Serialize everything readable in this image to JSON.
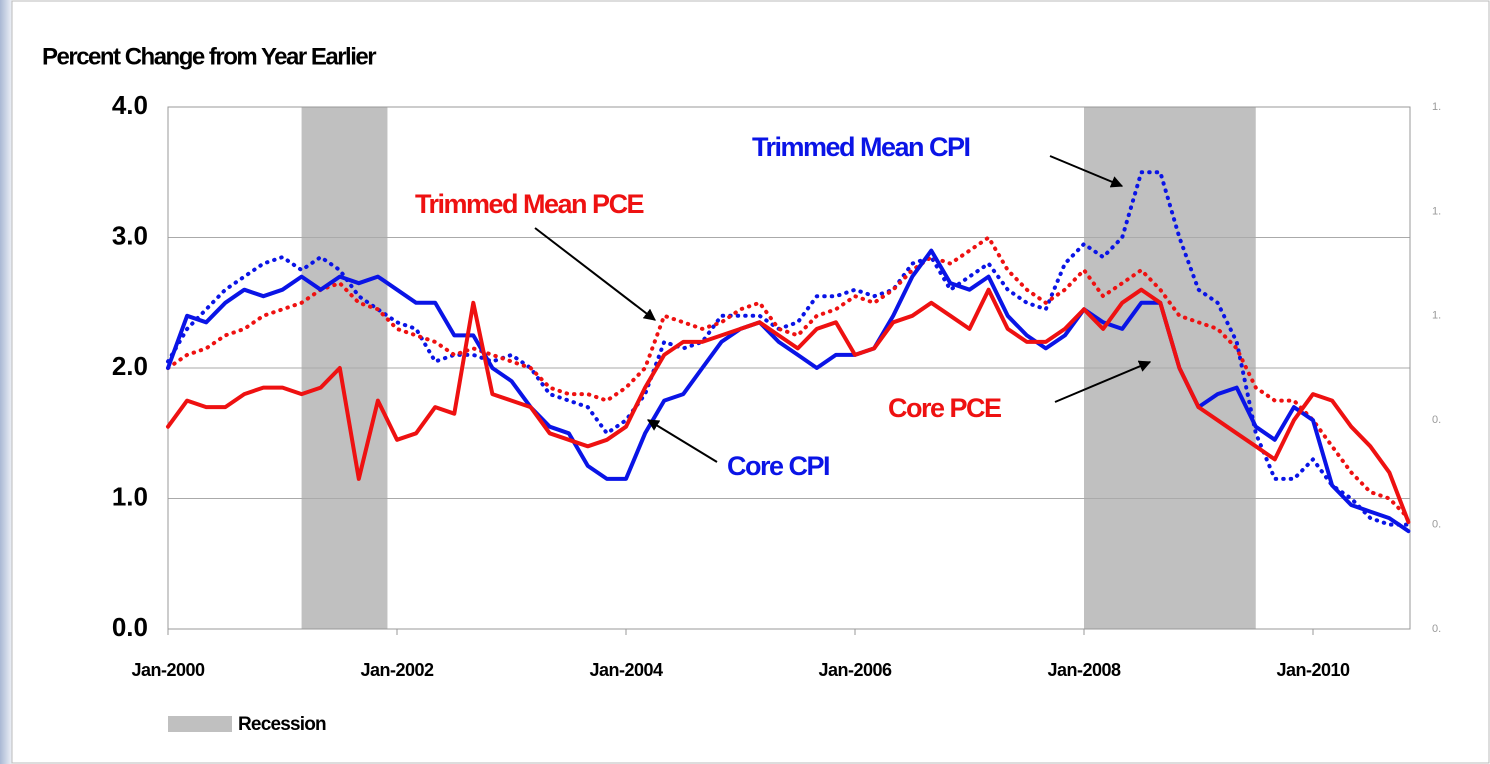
{
  "chart_data": {
    "type": "line",
    "title": "Percent Change from Year Earlier",
    "x": [
      "Jan-2000",
      "Mar-2000",
      "May-2000",
      "Jul-2000",
      "Sep-2000",
      "Nov-2000",
      "Jan-2001",
      "Mar-2001",
      "May-2001",
      "Jul-2001",
      "Sep-2001",
      "Nov-2001",
      "Jan-2002",
      "Mar-2002",
      "May-2002",
      "Jul-2002",
      "Sep-2002",
      "Nov-2002",
      "Jan-2003",
      "Mar-2003",
      "May-2003",
      "Jul-2003",
      "Sep-2003",
      "Nov-2003",
      "Jan-2004",
      "Mar-2004",
      "May-2004",
      "Jul-2004",
      "Sep-2004",
      "Nov-2004",
      "Jan-2005",
      "Mar-2005",
      "May-2005",
      "Jul-2005",
      "Sep-2005",
      "Nov-2005",
      "Jan-2006",
      "Mar-2006",
      "May-2006",
      "Jul-2006",
      "Sep-2006",
      "Nov-2006",
      "Jan-2007",
      "Mar-2007",
      "May-2007",
      "Jul-2007",
      "Sep-2007",
      "Nov-2007",
      "Jan-2008",
      "Mar-2008",
      "May-2008",
      "Jul-2008",
      "Sep-2008",
      "Nov-2008",
      "Jan-2009",
      "Mar-2009",
      "May-2009",
      "Jul-2009",
      "Sep-2009",
      "Nov-2009",
      "Jan-2010",
      "Mar-2010",
      "May-2010",
      "Jul-2010",
      "Sep-2010",
      "Nov-2010"
    ],
    "series": [
      {
        "name": "Core CPI",
        "color": "#0a14e6",
        "style": "solid",
        "values": [
          2.0,
          2.4,
          2.35,
          2.5,
          2.6,
          2.55,
          2.6,
          2.7,
          2.6,
          2.7,
          2.65,
          2.7,
          2.6,
          2.5,
          2.5,
          2.25,
          2.25,
          2.0,
          1.9,
          1.7,
          1.55,
          1.5,
          1.25,
          1.15,
          1.15,
          1.5,
          1.75,
          1.8,
          2.0,
          2.2,
          2.3,
          2.35,
          2.2,
          2.1,
          2.0,
          2.1,
          2.1,
          2.15,
          2.4,
          2.7,
          2.9,
          2.65,
          2.6,
          2.7,
          2.4,
          2.25,
          2.15,
          2.25,
          2.45,
          2.35,
          2.3,
          2.5,
          2.5,
          2.0,
          1.7,
          1.8,
          1.85,
          1.55,
          1.45,
          1.7,
          1.6,
          1.1,
          0.95,
          0.9,
          0.85,
          0.75
        ]
      },
      {
        "name": "Core PCE",
        "color": "#ee1111",
        "style": "solid",
        "values": [
          1.55,
          1.75,
          1.7,
          1.7,
          1.8,
          1.85,
          1.85,
          1.8,
          1.85,
          2.0,
          1.15,
          1.75,
          1.45,
          1.5,
          1.7,
          1.65,
          2.5,
          1.8,
          1.75,
          1.7,
          1.5,
          1.45,
          1.4,
          1.45,
          1.55,
          1.85,
          2.1,
          2.2,
          2.2,
          2.25,
          2.3,
          2.35,
          2.25,
          2.15,
          2.3,
          2.35,
          2.1,
          2.15,
          2.35,
          2.4,
          2.5,
          2.4,
          2.3,
          2.6,
          2.3,
          2.2,
          2.2,
          2.3,
          2.45,
          2.3,
          2.5,
          2.6,
          2.5,
          2.0,
          1.7,
          1.6,
          1.5,
          1.4,
          1.3,
          1.6,
          1.8,
          1.75,
          1.55,
          1.4,
          1.2,
          0.82
        ]
      },
      {
        "name": "Trimmed Mean CPI",
        "color": "#0a14e6",
        "style": "dotted",
        "values": [
          2.05,
          2.3,
          2.45,
          2.6,
          2.7,
          2.8,
          2.85,
          2.75,
          2.85,
          2.75,
          2.55,
          2.45,
          2.35,
          2.3,
          2.05,
          2.1,
          2.1,
          2.05,
          2.1,
          2.0,
          1.8,
          1.75,
          1.7,
          1.5,
          1.6,
          1.8,
          2.2,
          2.15,
          2.2,
          2.4,
          2.4,
          2.4,
          2.3,
          2.35,
          2.55,
          2.55,
          2.6,
          2.55,
          2.6,
          2.8,
          2.85,
          2.6,
          2.7,
          2.8,
          2.6,
          2.5,
          2.45,
          2.8,
          2.95,
          2.85,
          3.0,
          3.5,
          3.5,
          3.0,
          2.6,
          2.5,
          2.2,
          1.5,
          1.15,
          1.15,
          1.3,
          1.1,
          1.0,
          0.85,
          0.8,
          0.8
        ]
      },
      {
        "name": "Trimmed Mean PCE",
        "color": "#ee1111",
        "style": "dotted",
        "values": [
          2.0,
          2.1,
          2.15,
          2.25,
          2.3,
          2.4,
          2.45,
          2.5,
          2.6,
          2.65,
          2.5,
          2.45,
          2.3,
          2.25,
          2.2,
          2.1,
          2.15,
          2.1,
          2.05,
          2.0,
          1.85,
          1.8,
          1.8,
          1.75,
          1.85,
          2.0,
          2.4,
          2.35,
          2.3,
          2.35,
          2.45,
          2.5,
          2.3,
          2.25,
          2.4,
          2.45,
          2.55,
          2.5,
          2.6,
          2.75,
          2.85,
          2.8,
          2.9,
          3.0,
          2.75,
          2.6,
          2.5,
          2.6,
          2.75,
          2.55,
          2.65,
          2.75,
          2.6,
          2.4,
          2.35,
          2.3,
          2.15,
          1.85,
          1.75,
          1.75,
          1.6,
          1.4,
          1.2,
          1.05,
          1.0,
          0.85
        ]
      }
    ],
    "ylim": [
      0,
      4
    ],
    "yticks": [
      {
        "value": 0,
        "label": "0.0"
      },
      {
        "value": 1,
        "label": "1.0"
      },
      {
        "value": 2,
        "label": "2.0"
      },
      {
        "value": 3,
        "label": "3.0"
      },
      {
        "value": 4,
        "label": "4.0"
      }
    ],
    "y2lim": [
      0,
      1.75
    ],
    "y2ticks": [
      {
        "value": 0,
        "label": "0."
      },
      {
        "value": 0.35,
        "label": "0."
      },
      {
        "value": 0.7,
        "label": "0."
      },
      {
        "value": 1.05,
        "label": "1."
      },
      {
        "value": 1.4,
        "label": "1."
      },
      {
        "value": 1.75,
        "label": "1."
      }
    ],
    "xticks": [
      "Jan-2000",
      "Jan-2002",
      "Jan-2004",
      "Jan-2006",
      "Jan-2008",
      "Jan-2010"
    ],
    "grid": true,
    "recessions": [
      {
        "start": "Mar-2001",
        "end": "Nov-2001"
      },
      {
        "start": "Jan-2008",
        "end": "Jun-2009"
      }
    ],
    "recession_color": "#c0c0c0",
    "legend_label": "Recession",
    "annotations": [
      {
        "text": "Trimmed Mean CPI"
      },
      {
        "text": "Trimmed Mean PCE"
      },
      {
        "text": "Core PCE"
      },
      {
        "text": "Core CPI"
      }
    ]
  }
}
